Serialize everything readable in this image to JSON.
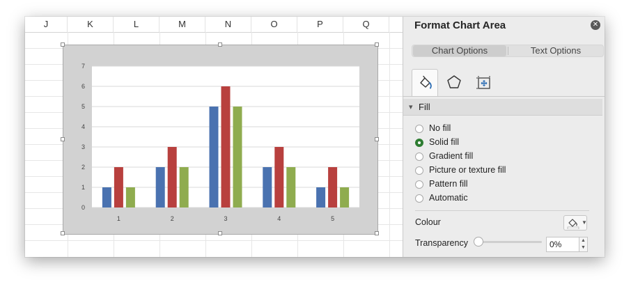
{
  "sheet": {
    "columns": [
      "J",
      "K",
      "L",
      "M",
      "N",
      "O",
      "P",
      "Q"
    ]
  },
  "pane": {
    "title": "Format Chart Area",
    "tabs": [
      "Chart Options",
      "Text Options"
    ],
    "active_tab": "Chart Options",
    "icon_tabs": [
      "fill-line-icon",
      "effects-pentagon-icon",
      "size-properties-icon"
    ],
    "section": "Fill",
    "fill_options": [
      {
        "label": "No fill",
        "checked": false
      },
      {
        "label": "Solid fill",
        "checked": true
      },
      {
        "label": "Gradient fill",
        "checked": false
      },
      {
        "label": "Picture or texture fill",
        "checked": false
      },
      {
        "label": "Pattern fill",
        "checked": false
      },
      {
        "label": "Automatic",
        "checked": false
      }
    ],
    "colour_label": "Colour",
    "transparency_label": "Transparency",
    "transparency_value": "0%",
    "accent_color": "#2e7d32"
  },
  "chart_data": {
    "type": "bar",
    "categories": [
      "1",
      "2",
      "3",
      "4",
      "5"
    ],
    "series": [
      {
        "values": [
          1,
          2,
          5,
          2,
          1
        ],
        "color": "#4a72b0"
      },
      {
        "values": [
          2,
          3,
          6,
          3,
          2
        ],
        "color": "#b8403e"
      },
      {
        "values": [
          1,
          2,
          5,
          2,
          1
        ],
        "color": "#8fac4f"
      }
    ],
    "ylim": [
      0,
      7
    ],
    "yticks": [
      "0",
      "1",
      "2",
      "3",
      "4",
      "5",
      "6",
      "7"
    ],
    "grid": true,
    "legend": "none",
    "chart_area_color": "#d2d2d2",
    "plot_area_color": "#ffffff"
  }
}
